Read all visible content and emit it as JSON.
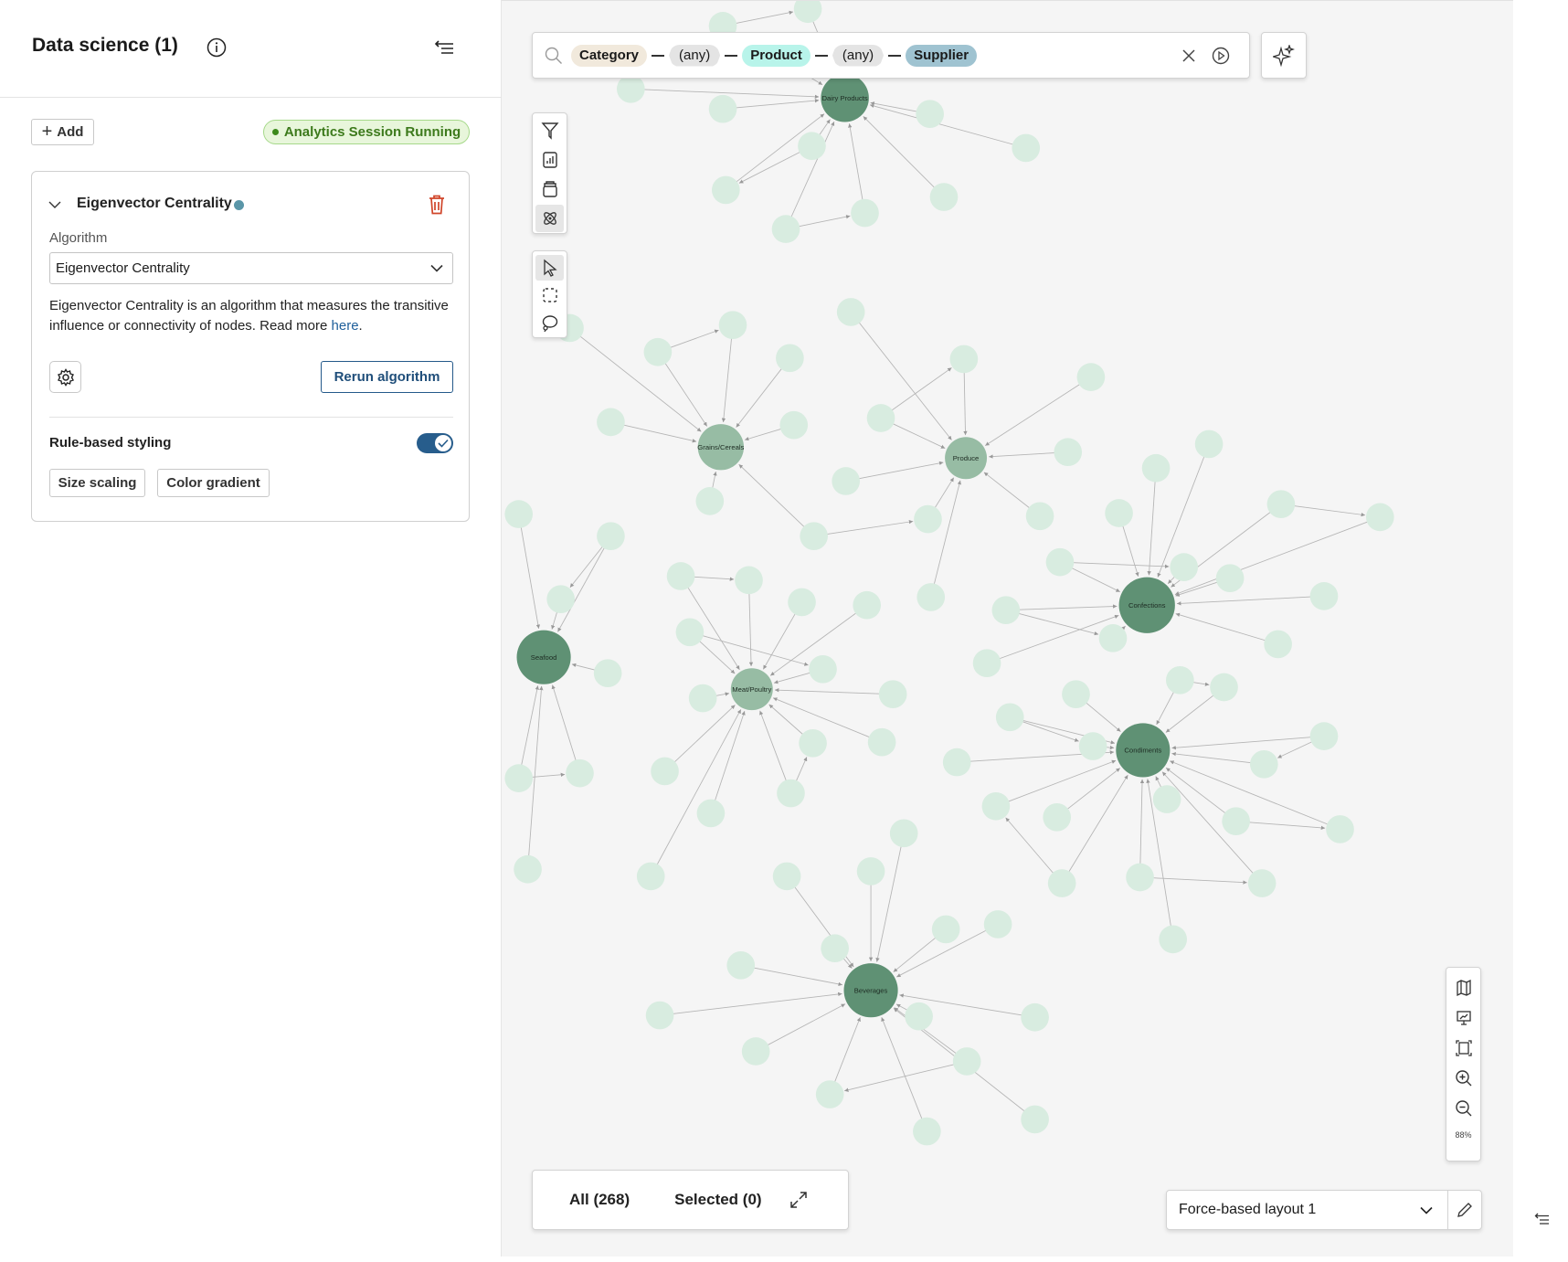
{
  "sidebar": {
    "title": "Data science (1)",
    "add_label": "Add",
    "session_status": "Analytics Session Running",
    "algorithm_card": {
      "title": "Eigenvector Centrality",
      "algorithm_label": "Algorithm",
      "algorithm_value": "Eigenvector Centrality",
      "description": "Eigenvector Centrality is an algorithm that measures the transitive influence or connectivity of nodes. Read more ",
      "link_text": "here",
      "description_end": ".",
      "rerun_label": "Rerun algorithm",
      "rule_styling_label": "Rule-based styling",
      "rule_styling_enabled": true,
      "size_scaling_label": "Size scaling",
      "color_gradient_label": "Color gradient"
    }
  },
  "search": {
    "chips": [
      {
        "label": "Category",
        "color": "#f1e9dc"
      },
      {
        "label": "(any)",
        "color": "#e4e4e4"
      },
      {
        "label": "Product",
        "color": "#b8f4ea"
      },
      {
        "label": "(any)",
        "color": "#e4e4e4"
      },
      {
        "label": "Supplier",
        "color": "#9fc3d1"
      }
    ]
  },
  "graph": {
    "hubs": [
      "Dairy Products",
      "Grains/Cereals",
      "Produce",
      "Confections",
      "Seafood",
      "Meat/Poultry",
      "Condiments",
      "Beverages"
    ],
    "colors": {
      "hub": "#5f9174",
      "hub_light": "#97bca4",
      "node": "#d8ece0",
      "edge": "#b5b5b5"
    }
  },
  "counts": {
    "all": "All (268)",
    "selected": "Selected (0)"
  },
  "zoom": {
    "level": "88%"
  },
  "layout": {
    "value": "Force-based layout 1"
  }
}
